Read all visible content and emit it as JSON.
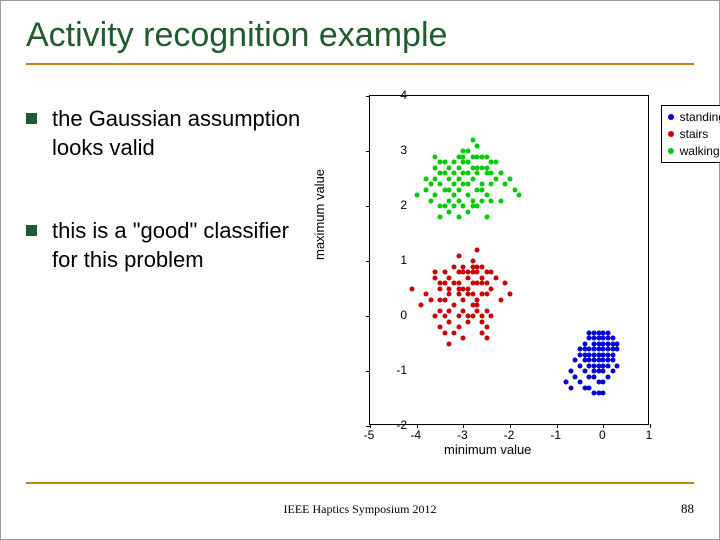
{
  "title": "Activity recognition example",
  "bullets": [
    {
      "text": "the Gaussian assumption looks valid"
    },
    {
      "text": "this is a \"good\" classifier for this problem"
    }
  ],
  "footer": "IEEE Haptics Symposium 2012",
  "page_num": "88",
  "chart": {
    "type": "scatter",
    "xlabel": "minimum value",
    "ylabel": "maximum value",
    "xlim": [
      -5,
      1
    ],
    "ylim": [
      -2,
      4
    ],
    "xticks": [
      -5,
      -4,
      -3,
      -2,
      -1,
      0,
      1
    ],
    "yticks": [
      -2,
      -1,
      0,
      1,
      2,
      3,
      4
    ],
    "background_color": "#ffffff",
    "axis_color": "#000000",
    "label_fontsize": 13,
    "tick_fontsize": 12,
    "marker_size": 5,
    "legend": {
      "position": "top-right",
      "border_color": "#000000",
      "items": [
        {
          "label": "standing",
          "color": "#0000dd"
        },
        {
          "label": "stairs",
          "color": "#cc0000"
        },
        {
          "label": "walking",
          "color": "#00cc00"
        }
      ]
    },
    "series": [
      {
        "name": "walking",
        "color": "#00cc00",
        "points": [
          [
            -3.2,
            2.8
          ],
          [
            -2.9,
            3.0
          ],
          [
            -3.5,
            2.6
          ],
          [
            -2.7,
            2.9
          ],
          [
            -3.1,
            2.5
          ],
          [
            -2.8,
            2.7
          ],
          [
            -3.4,
            2.3
          ],
          [
            -2.6,
            2.4
          ],
          [
            -3.0,
            2.9
          ],
          [
            -3.3,
            2.1
          ],
          [
            -2.5,
            2.6
          ],
          [
            -2.9,
            2.2
          ],
          [
            -3.6,
            2.5
          ],
          [
            -2.4,
            2.8
          ],
          [
            -3.2,
            2.0
          ],
          [
            -2.7,
            2.3
          ],
          [
            -3.1,
            2.7
          ],
          [
            -2.8,
            2.1
          ],
          [
            -3.5,
            2.4
          ],
          [
            -2.6,
            2.9
          ],
          [
            -3.0,
            2.4
          ],
          [
            -3.3,
            2.7
          ],
          [
            -2.5,
            2.2
          ],
          [
            -2.9,
            2.6
          ],
          [
            -3.4,
            2.8
          ],
          [
            -2.7,
            2.0
          ],
          [
            -3.1,
            2.3
          ],
          [
            -2.8,
            2.5
          ],
          [
            -3.6,
            2.2
          ],
          [
            -2.4,
            2.4
          ],
          [
            -3.2,
            2.6
          ],
          [
            -2.6,
            2.1
          ],
          [
            -3.0,
            2.8
          ],
          [
            -3.5,
            2.0
          ],
          [
            -2.5,
            2.7
          ],
          [
            -2.9,
            2.4
          ],
          [
            -3.3,
            2.3
          ],
          [
            -2.7,
            2.6
          ],
          [
            -3.1,
            2.1
          ],
          [
            -2.8,
            2.9
          ],
          [
            -3.7,
            2.4
          ],
          [
            -2.3,
            2.5
          ],
          [
            -3.4,
            2.6
          ],
          [
            -2.6,
            2.3
          ],
          [
            -3.0,
            2.0
          ],
          [
            -3.2,
            2.2
          ],
          [
            -2.5,
            2.9
          ],
          [
            -2.9,
            2.8
          ],
          [
            -3.6,
            2.7
          ],
          [
            -2.4,
            2.1
          ],
          [
            -3.8,
            2.3
          ],
          [
            -2.2,
            2.6
          ],
          [
            -3.3,
            2.5
          ],
          [
            -2.7,
            2.7
          ],
          [
            -3.1,
            2.9
          ],
          [
            -4.0,
            2.2
          ],
          [
            -2.1,
            2.4
          ],
          [
            -3.5,
            2.8
          ],
          [
            -2.8,
            2.0
          ],
          [
            -3.0,
            2.6
          ],
          [
            -1.9,
            2.3
          ],
          [
            -3.7,
            2.1
          ],
          [
            -2.3,
            2.8
          ],
          [
            -3.4,
            2.0
          ],
          [
            -2.6,
            2.7
          ],
          [
            -3.2,
            2.4
          ],
          [
            -2.0,
            2.5
          ],
          [
            -2.9,
            1.9
          ],
          [
            -3.6,
            2.9
          ],
          [
            -2.4,
            2.6
          ],
          [
            -3.1,
            1.8
          ],
          [
            -2.7,
            3.1
          ],
          [
            -3.3,
            1.9
          ],
          [
            -2.5,
            1.8
          ],
          [
            -3.0,
            3.0
          ],
          [
            -1.8,
            2.2
          ],
          [
            -3.8,
            2.5
          ],
          [
            -2.2,
            2.1
          ],
          [
            -3.5,
            1.8
          ],
          [
            -2.8,
            3.2
          ]
        ]
      },
      {
        "name": "stairs",
        "color": "#cc0000",
        "points": [
          [
            -3.1,
            0.5
          ],
          [
            -2.8,
            0.8
          ],
          [
            -3.4,
            0.3
          ],
          [
            -2.6,
            0.6
          ],
          [
            -3.0,
            0.9
          ],
          [
            -3.3,
            0.1
          ],
          [
            -2.5,
            0.4
          ],
          [
            -2.9,
            0.7
          ],
          [
            -3.5,
            0.5
          ],
          [
            -2.7,
            0.2
          ],
          [
            -3.1,
            0.8
          ],
          [
            -2.8,
            0.0
          ],
          [
            -3.4,
            0.6
          ],
          [
            -2.6,
            0.9
          ],
          [
            -3.0,
            0.3
          ],
          [
            -3.3,
            0.7
          ],
          [
            -2.5,
            0.1
          ],
          [
            -2.9,
            0.4
          ],
          [
            -3.6,
            0.8
          ],
          [
            -2.4,
            0.5
          ],
          [
            -3.2,
            0.2
          ],
          [
            -2.7,
            0.6
          ],
          [
            -3.1,
            0.0
          ],
          [
            -2.8,
            0.9
          ],
          [
            -3.5,
            0.3
          ],
          [
            -2.6,
            0.7
          ],
          [
            -3.0,
            0.1
          ],
          [
            -3.3,
            0.4
          ],
          [
            -2.5,
            0.8
          ],
          [
            -2.9,
            0.5
          ],
          [
            -3.4,
            0.0
          ],
          [
            -2.7,
            0.3
          ],
          [
            -3.1,
            0.6
          ],
          [
            -2.8,
            0.2
          ],
          [
            -3.6,
            0.7
          ],
          [
            -2.4,
            0.0
          ],
          [
            -3.2,
            0.9
          ],
          [
            -2.6,
            0.4
          ],
          [
            -3.0,
            0.8
          ],
          [
            -3.5,
            0.1
          ],
          [
            -2.5,
            0.6
          ],
          [
            -2.9,
            -0.1
          ],
          [
            -3.3,
            0.5
          ],
          [
            -2.7,
            0.9
          ],
          [
            -3.1,
            -0.2
          ],
          [
            -2.8,
            0.4
          ],
          [
            -3.4,
            0.8
          ],
          [
            -2.6,
            -0.1
          ],
          [
            -3.0,
            0.5
          ],
          [
            -3.7,
            0.3
          ],
          [
            -2.3,
            0.7
          ],
          [
            -3.2,
            -0.3
          ],
          [
            -2.7,
            0.1
          ],
          [
            -3.5,
            0.6
          ],
          [
            -2.5,
            -0.2
          ],
          [
            -2.9,
            0.8
          ],
          [
            -3.3,
            -0.1
          ],
          [
            -2.8,
            0.6
          ],
          [
            -3.1,
            0.4
          ],
          [
            -2.6,
            0.0
          ],
          [
            -3.8,
            0.4
          ],
          [
            -2.2,
            0.3
          ],
          [
            -3.4,
            -0.3
          ],
          [
            -2.7,
            0.8
          ],
          [
            -3.0,
            -0.4
          ],
          [
            -3.6,
            0.0
          ],
          [
            -2.4,
            0.8
          ],
          [
            -3.2,
            0.6
          ],
          [
            -2.5,
            -0.4
          ],
          [
            -2.9,
            0.0
          ],
          [
            -4.1,
            0.5
          ],
          [
            -2.0,
            0.4
          ],
          [
            -3.3,
            -0.5
          ],
          [
            -2.8,
            1.0
          ],
          [
            -3.1,
            1.1
          ],
          [
            -2.6,
            -0.3
          ],
          [
            -3.5,
            -0.2
          ],
          [
            -2.7,
            1.2
          ],
          [
            -3.9,
            0.2
          ],
          [
            -2.1,
            0.6
          ]
        ]
      },
      {
        "name": "standing",
        "color": "#0000dd",
        "points": [
          [
            -0.2,
            -0.4
          ],
          [
            -0.1,
            -0.5
          ],
          [
            0.0,
            -0.3
          ],
          [
            -0.3,
            -0.6
          ],
          [
            0.1,
            -0.4
          ],
          [
            -0.2,
            -0.7
          ],
          [
            -0.1,
            -0.3
          ],
          [
            0.0,
            -0.5
          ],
          [
            -0.3,
            -0.4
          ],
          [
            0.1,
            -0.6
          ],
          [
            -0.2,
            -0.5
          ],
          [
            -0.1,
            -0.7
          ],
          [
            0.0,
            -0.4
          ],
          [
            -0.3,
            -0.3
          ],
          [
            0.1,
            -0.5
          ],
          [
            -0.2,
            -0.6
          ],
          [
            -0.1,
            -0.4
          ],
          [
            0.0,
            -0.7
          ],
          [
            -0.4,
            -0.5
          ],
          [
            0.2,
            -0.4
          ],
          [
            -0.2,
            -0.8
          ],
          [
            -0.1,
            -0.6
          ],
          [
            0.0,
            -0.6
          ],
          [
            -0.3,
            -0.7
          ],
          [
            0.1,
            -0.3
          ],
          [
            -0.2,
            -0.3
          ],
          [
            -0.1,
            -0.8
          ],
          [
            0.0,
            -0.8
          ],
          [
            -0.4,
            -0.6
          ],
          [
            0.2,
            -0.5
          ],
          [
            -0.3,
            -0.8
          ],
          [
            -0.2,
            -0.9
          ],
          [
            -0.1,
            -0.9
          ],
          [
            0.0,
            -0.9
          ],
          [
            0.1,
            -0.7
          ],
          [
            0.1,
            -0.8
          ],
          [
            -0.4,
            -0.7
          ],
          [
            0.2,
            -0.6
          ],
          [
            0.2,
            -0.7
          ],
          [
            -0.3,
            -0.9
          ],
          [
            -0.5,
            -0.6
          ],
          [
            0.3,
            -0.5
          ],
          [
            -0.4,
            -0.8
          ],
          [
            0.2,
            -0.8
          ],
          [
            -0.1,
            -1.0
          ],
          [
            0.0,
            -1.0
          ],
          [
            -0.2,
            -1.0
          ],
          [
            0.1,
            -0.9
          ],
          [
            -0.5,
            -0.7
          ],
          [
            0.3,
            -0.6
          ],
          [
            -0.6,
            -0.8
          ],
          [
            -0.5,
            -0.9
          ],
          [
            -0.4,
            -1.0
          ],
          [
            -0.3,
            -1.1
          ],
          [
            -0.2,
            -1.1
          ],
          [
            -0.1,
            -1.2
          ],
          [
            0.0,
            -1.2
          ],
          [
            0.1,
            -1.1
          ],
          [
            0.2,
            -1.0
          ],
          [
            0.3,
            -0.9
          ],
          [
            -0.7,
            -1.0
          ],
          [
            -0.6,
            -1.1
          ],
          [
            -0.5,
            -1.2
          ],
          [
            -0.4,
            -1.3
          ],
          [
            -0.3,
            -1.3
          ],
          [
            -0.2,
            -1.4
          ],
          [
            -0.1,
            -1.4
          ],
          [
            0.0,
            -1.4
          ],
          [
            -0.8,
            -1.2
          ],
          [
            -0.7,
            -1.3
          ]
        ]
      }
    ]
  }
}
